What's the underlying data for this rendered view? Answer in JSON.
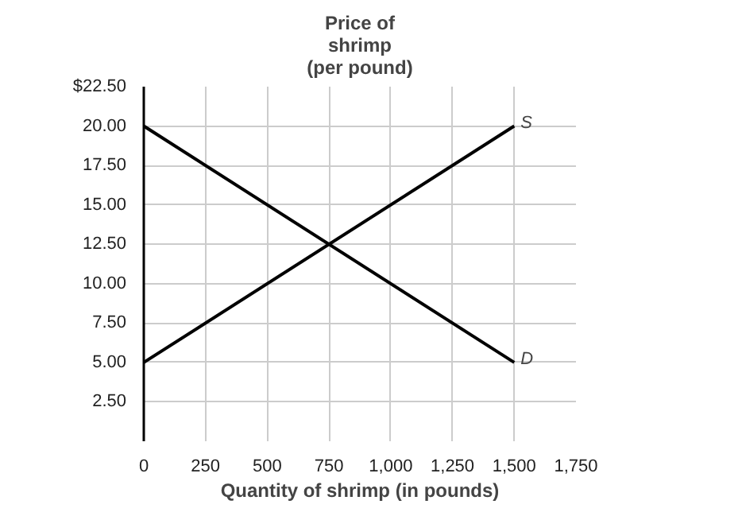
{
  "chart_data": {
    "type": "line",
    "xlabel": "Quantity of shrimp (in pounds)",
    "ylabel": "Price of\nshrimp\n(per pound)",
    "x": [
      0,
      1500
    ],
    "series": [
      {
        "name": "S",
        "color": "#000000",
        "values": [
          5,
          20
        ]
      },
      {
        "name": "D",
        "color": "#000000",
        "values": [
          20,
          5
        ]
      }
    ],
    "xlim": [
      0,
      1750
    ],
    "ylim": [
      0,
      22.5
    ],
    "xticks": [
      0,
      250,
      500,
      750,
      {
        "value": 1000,
        "label": "1,000"
      },
      {
        "value": 1250,
        "label": "1,250"
      },
      {
        "value": 1500,
        "label": "1,500"
      },
      {
        "value": 1750,
        "label": "1,750"
      }
    ],
    "yticks": [
      {
        "value": 2.5,
        "label": "2.50"
      },
      {
        "value": 5,
        "label": "5.00"
      },
      {
        "value": 7.5,
        "label": "7.50"
      },
      {
        "value": 10,
        "label": "10.00"
      },
      {
        "value": 12.5,
        "label": "12.50"
      },
      {
        "value": 15,
        "label": "15.00"
      },
      {
        "value": 17.5,
        "label": "17.50"
      },
      {
        "value": 20,
        "label": "20.00"
      },
      {
        "value": 22.5,
        "label": "$22.50"
      }
    ],
    "grid": true,
    "marker": "none",
    "line_style": "solid"
  }
}
